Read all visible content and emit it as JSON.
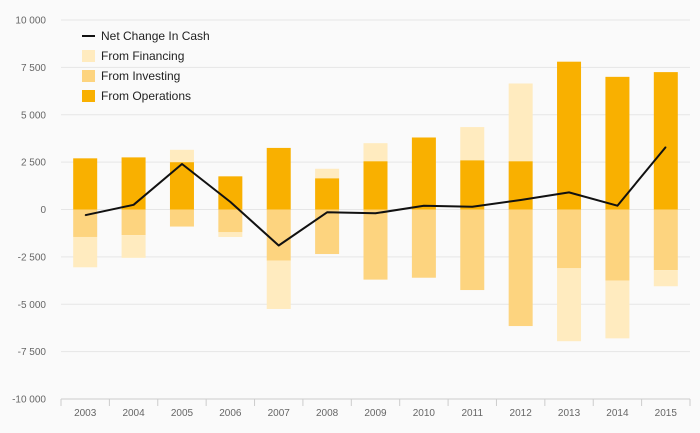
{
  "chart_data": {
    "type": "bar",
    "stacked": true,
    "categories": [
      "2003",
      "2004",
      "2005",
      "2006",
      "2007",
      "2008",
      "2009",
      "2010",
      "2011",
      "2012",
      "2013",
      "2014",
      "2015"
    ],
    "ylim": [
      -10000,
      10000
    ],
    "yticks": [
      {
        "value": 10000,
        "label": "10 000"
      },
      {
        "value": 7500,
        "label": "7 500"
      },
      {
        "value": 5000,
        "label": "5 000"
      },
      {
        "value": 2500,
        "label": "2 500"
      },
      {
        "value": 0,
        "label": "0"
      },
      {
        "value": -2500,
        "label": "-2 500"
      },
      {
        "value": -5000,
        "label": "-5 000"
      },
      {
        "value": -7500,
        "label": "-7 500"
      },
      {
        "value": -10000,
        "label": "-10 000"
      }
    ],
    "grid": true,
    "legend_position": "top-left",
    "series": [
      {
        "name": "From Operations",
        "kind": "bar",
        "color": "#f9b000",
        "values": [
          2700,
          2750,
          2500,
          1750,
          3250,
          1650,
          2550,
          3800,
          2600,
          2550,
          7800,
          7000,
          7250
        ]
      },
      {
        "name": "From Investing",
        "kind": "bar",
        "color": "#fdd47f",
        "values": [
          -1450,
          -1350,
          -900,
          -1200,
          -2700,
          -2350,
          -3700,
          -3600,
          -4250,
          -6150,
          -3100,
          -3750,
          -3200
        ]
      },
      {
        "name": "From Financing",
        "kind": "bar",
        "color": "#ffebbf",
        "values": [
          -1600,
          -1200,
          650,
          -250,
          -2550,
          500,
          950,
          0,
          1750,
          4100,
          -3850,
          -3050,
          -850
        ]
      },
      {
        "name": "Net Change In Cash",
        "kind": "line",
        "color": "#111111",
        "values": [
          -300,
          250,
          2400,
          400,
          -1900,
          -150,
          -200,
          200,
          150,
          500,
          900,
          200,
          3300
        ]
      }
    ],
    "legend_order": [
      "Net Change In Cash",
      "From Financing",
      "From Investing",
      "From Operations"
    ]
  }
}
